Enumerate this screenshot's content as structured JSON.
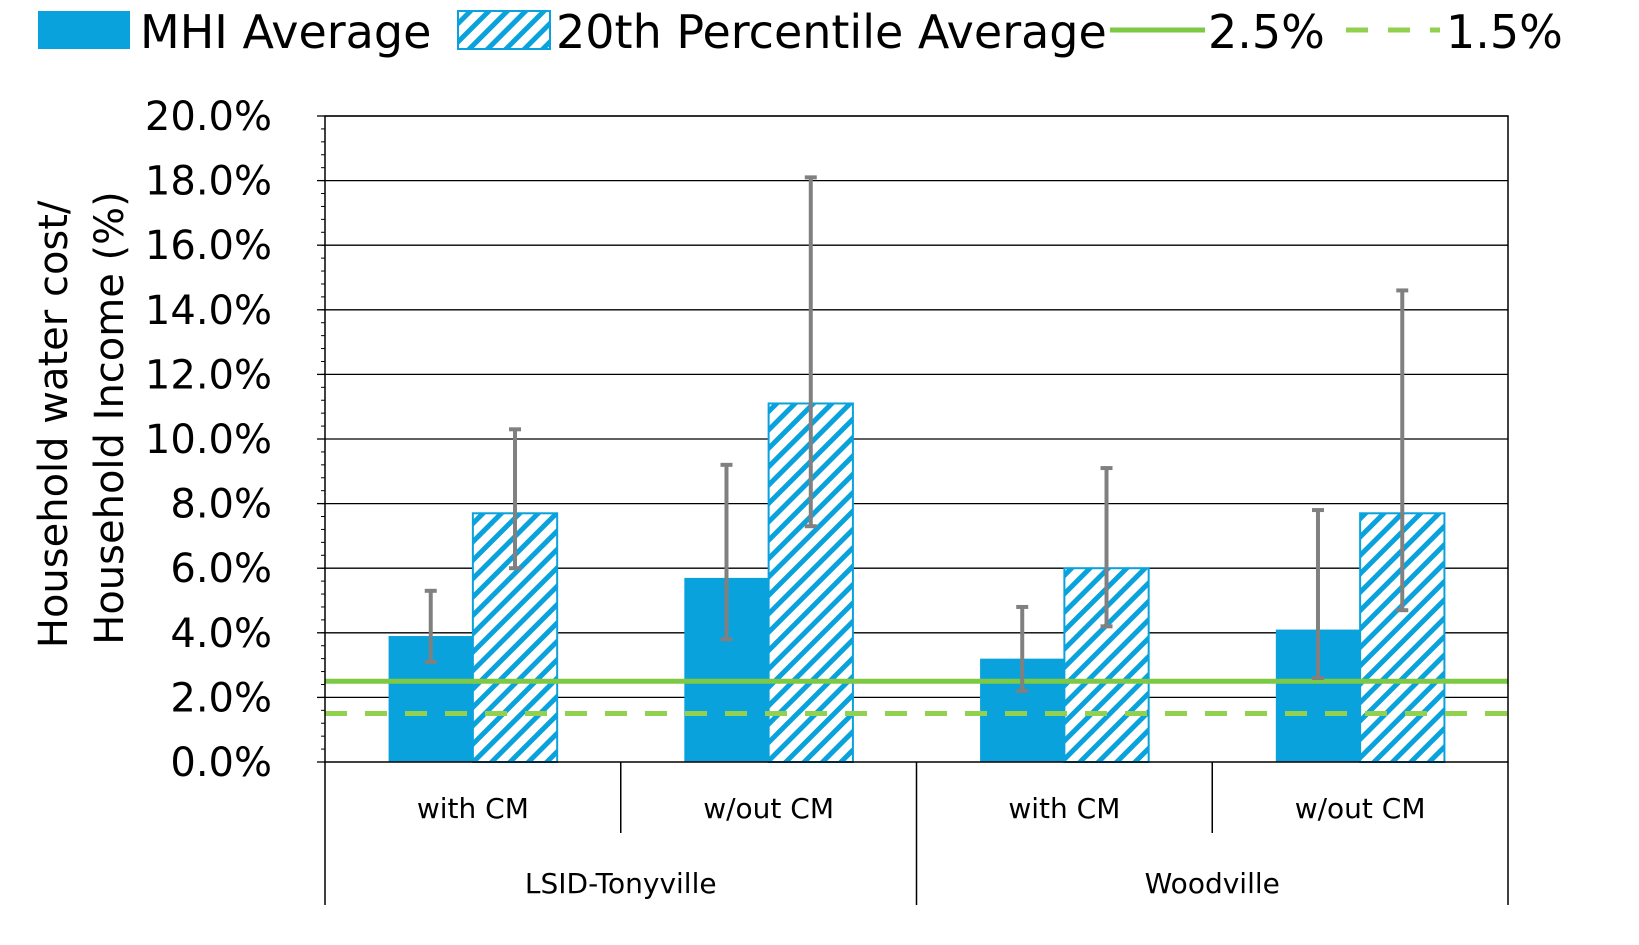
{
  "chart_data": {
    "type": "bar",
    "title": "",
    "ylabel": [
      "Household water cost/",
      "Household Income (%)"
    ],
    "xlabel": "",
    "ylim": [
      0,
      20
    ],
    "y_ticks": [
      "0.0%",
      "2.0%",
      "4.0%",
      "6.0%",
      "8.0%",
      "10.0%",
      "12.0%",
      "14.0%",
      "16.0%",
      "18.0%",
      "20.0%"
    ],
    "y_tick_values": [
      0,
      2,
      4,
      6,
      8,
      10,
      12,
      14,
      16,
      18,
      20
    ],
    "grid": true,
    "legend_position": "top",
    "groups": [
      {
        "label": "LSID-Tonyville",
        "categories": [
          "with CM",
          "w/out CM"
        ]
      },
      {
        "label": "Woodville",
        "categories": [
          "with CM",
          "w/out CM"
        ]
      }
    ],
    "categories": [
      "with CM",
      "w/out CM",
      "with CM",
      "w/out CM"
    ],
    "series": [
      {
        "name": "MHI Average",
        "style": "solid",
        "color": "#0aa2dc",
        "values": [
          3.9,
          5.7,
          3.2,
          4.1
        ],
        "error_low": [
          3.1,
          3.8,
          2.2,
          2.6
        ],
        "error_high": [
          5.3,
          9.2,
          4.8,
          7.8
        ]
      },
      {
        "name": "20th Percentile Average",
        "style": "hatched",
        "color": "#0aa2dc",
        "values": [
          7.7,
          11.1,
          6.0,
          7.7
        ],
        "error_low": [
          6.0,
          7.3,
          4.2,
          4.7
        ],
        "error_high": [
          10.3,
          18.1,
          9.1,
          14.6
        ]
      }
    ],
    "reference_lines": [
      {
        "name": "2.5%",
        "value": 2.5,
        "style": "solid",
        "color": "#7dc943"
      },
      {
        "name": "1.5%",
        "value": 1.5,
        "style": "dashed",
        "color": "#92d050"
      }
    ],
    "error_bar_color": "#808080"
  }
}
